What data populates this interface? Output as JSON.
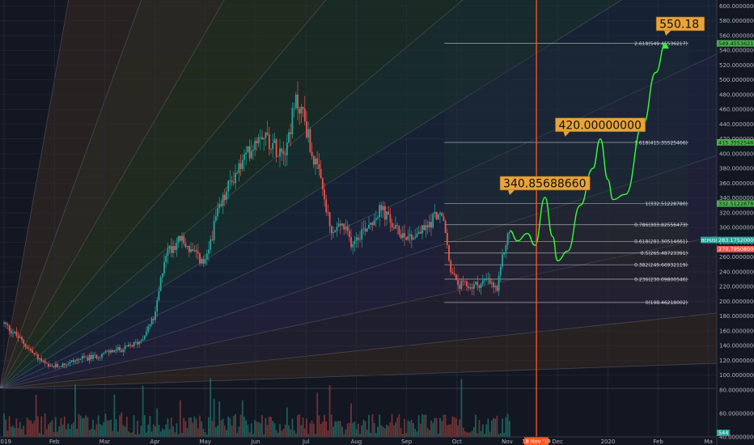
{
  "chart_data": {
    "type": "candlestick",
    "y_axis": {
      "min": 40,
      "max": 600,
      "ticks": [
        "600.00000000",
        "580.00000000",
        "560.00000000",
        "540.00000000",
        "520.00000000",
        "500.00000000",
        "480.00000000",
        "460.00000000",
        "440.00000000",
        "420.00000000",
        "400.00000000",
        "380.00000000",
        "360.00000000",
        "340.00000000",
        "320.00000000",
        "300.00000000",
        "280.00000000",
        "260.00000000",
        "240.00000000",
        "220.00000000",
        "200.00000000",
        "180.00000000",
        "160.00000000",
        "140.00000000",
        "120.00000000",
        "100.00000000",
        "80.00000000",
        "60.00000000",
        "40.00000000"
      ],
      "tick_values": [
        600,
        580,
        560,
        540,
        520,
        500,
        480,
        460,
        440,
        420,
        400,
        380,
        360,
        340,
        320,
        300,
        280,
        260,
        240,
        220,
        200,
        180,
        160,
        140,
        120,
        100,
        80,
        60,
        40
      ]
    },
    "x_axis": {
      "ticks": [
        "2019",
        "Feb",
        "Mar",
        "Apr",
        "May",
        "Jun",
        "Jul",
        "Aug",
        "Sep",
        "Oct",
        "Nov",
        "Dec",
        "2020",
        "Feb",
        "Ma"
      ],
      "tick_month_index": [
        0,
        1,
        2,
        3,
        4,
        5,
        6,
        7,
        8,
        9,
        10,
        11,
        12,
        13,
        14
      ]
    },
    "price_path": [
      {
        "t": 0.0,
        "p": 170
      },
      {
        "t": 0.3,
        "p": 150
      },
      {
        "t": 0.6,
        "p": 128
      },
      {
        "t": 0.9,
        "p": 110
      },
      {
        "t": 1.2,
        "p": 115
      },
      {
        "t": 1.5,
        "p": 122
      },
      {
        "t": 1.8,
        "p": 125
      },
      {
        "t": 2.1,
        "p": 132
      },
      {
        "t": 2.4,
        "p": 136
      },
      {
        "t": 2.7,
        "p": 146
      },
      {
        "t": 3.0,
        "p": 180
      },
      {
        "t": 3.2,
        "p": 265
      },
      {
        "t": 3.5,
        "p": 285
      },
      {
        "t": 3.8,
        "p": 262
      },
      {
        "t": 4.0,
        "p": 250
      },
      {
        "t": 4.2,
        "p": 310
      },
      {
        "t": 4.5,
        "p": 362
      },
      {
        "t": 4.8,
        "p": 395
      },
      {
        "t": 5.1,
        "p": 432
      },
      {
        "t": 5.4,
        "p": 408
      },
      {
        "t": 5.6,
        "p": 410
      },
      {
        "t": 5.8,
        "p": 470
      },
      {
        "t": 5.95,
        "p": 455
      },
      {
        "t": 6.1,
        "p": 405
      },
      {
        "t": 6.3,
        "p": 360
      },
      {
        "t": 6.5,
        "p": 290
      },
      {
        "t": 6.7,
        "p": 305
      },
      {
        "t": 6.9,
        "p": 280
      },
      {
        "t": 7.2,
        "p": 302
      },
      {
        "t": 7.5,
        "p": 325
      },
      {
        "t": 7.8,
        "p": 295
      },
      {
        "t": 8.1,
        "p": 288
      },
      {
        "t": 8.4,
        "p": 300
      },
      {
        "t": 8.6,
        "p": 320
      },
      {
        "t": 8.75,
        "p": 305
      },
      {
        "t": 8.85,
        "p": 250
      },
      {
        "t": 9.0,
        "p": 222
      },
      {
        "t": 9.3,
        "p": 220
      },
      {
        "t": 9.6,
        "p": 228
      },
      {
        "t": 9.8,
        "p": 215
      },
      {
        "t": 9.95,
        "p": 275
      },
      {
        "t": 10.05,
        "p": 296
      }
    ],
    "fib_levels": [
      {
        "ratio": "2.618",
        "value": 549.45536217,
        "label": "2.618(549.45536217)"
      },
      {
        "ratio": "1.618",
        "value": 415.35525466,
        "label": "1.618(415.35525466)"
      },
      {
        "ratio": "1",
        "value": 332.5122878,
        "label": "1(332.51228780)"
      },
      {
        "ratio": "0.786",
        "value": 303.82556473,
        "label": "0.786(303.82556473)"
      },
      {
        "ratio": "0.618",
        "value": 281.30514661,
        "label": "0.618(281.30514661)"
      },
      {
        "ratio": "0.5",
        "value": 265.48723391,
        "label": "0.5(265.48723391)"
      },
      {
        "ratio": "0.382",
        "value": 249.66932119,
        "label": "0.382(249.66932119)"
      },
      {
        "ratio": "0.236",
        "value": 230.09800546,
        "label": "0.236(230.09800546)"
      },
      {
        "ratio": "0",
        "value": 198.46218002,
        "label": "0(198.46218002)"
      }
    ],
    "projection_path": [
      {
        "t": 10.05,
        "p": 296
      },
      {
        "t": 10.2,
        "p": 282
      },
      {
        "t": 10.4,
        "p": 292
      },
      {
        "t": 10.55,
        "p": 276
      },
      {
        "t": 10.75,
        "p": 340.8568866
      },
      {
        "t": 10.9,
        "p": 288
      },
      {
        "t": 11.0,
        "p": 255
      },
      {
        "t": 11.2,
        "p": 268
      },
      {
        "t": 11.45,
        "p": 330
      },
      {
        "t": 11.7,
        "p": 380
      },
      {
        "t": 11.85,
        "p": 420.0
      },
      {
        "t": 12.0,
        "p": 365
      },
      {
        "t": 12.1,
        "p": 338
      },
      {
        "t": 12.35,
        "p": 345
      },
      {
        "t": 12.7,
        "p": 440
      },
      {
        "t": 12.95,
        "p": 510
      },
      {
        "t": 13.15,
        "p": 550.18
      }
    ],
    "callouts": [
      {
        "text": "550.18",
        "t": 13.25,
        "p": 550.18
      },
      {
        "text": "420.00000000",
        "t": 11.85,
        "p": 420.0
      },
      {
        "text": "340.85688660",
        "t": 10.75,
        "p": 340.8568866
      }
    ],
    "vertical_marker": {
      "t": 10.58,
      "label": "18 Nov '19",
      "color": "#ff5722"
    },
    "price_tags": [
      {
        "text": "BCHUSD",
        "value": 283.1752,
        "value_text": "283.17520000",
        "color": "#26a69a"
      },
      {
        "text": "",
        "value": 270.79508,
        "value_text": "270.79508000",
        "color": "#ef5350"
      }
    ],
    "volume_axis": {
      "ticks": [
        "80.00000000",
        "60.00000000",
        "40.00000000"
      ],
      "tick_values": [
        80,
        60,
        40
      ]
    },
    "volume_tag": "544",
    "colors": {
      "up": "#26a69a",
      "down": "#ef5350",
      "projection": "#33ff33",
      "background": "#131722",
      "callout": "#e8a33a",
      "marker": "#ff5722"
    }
  }
}
